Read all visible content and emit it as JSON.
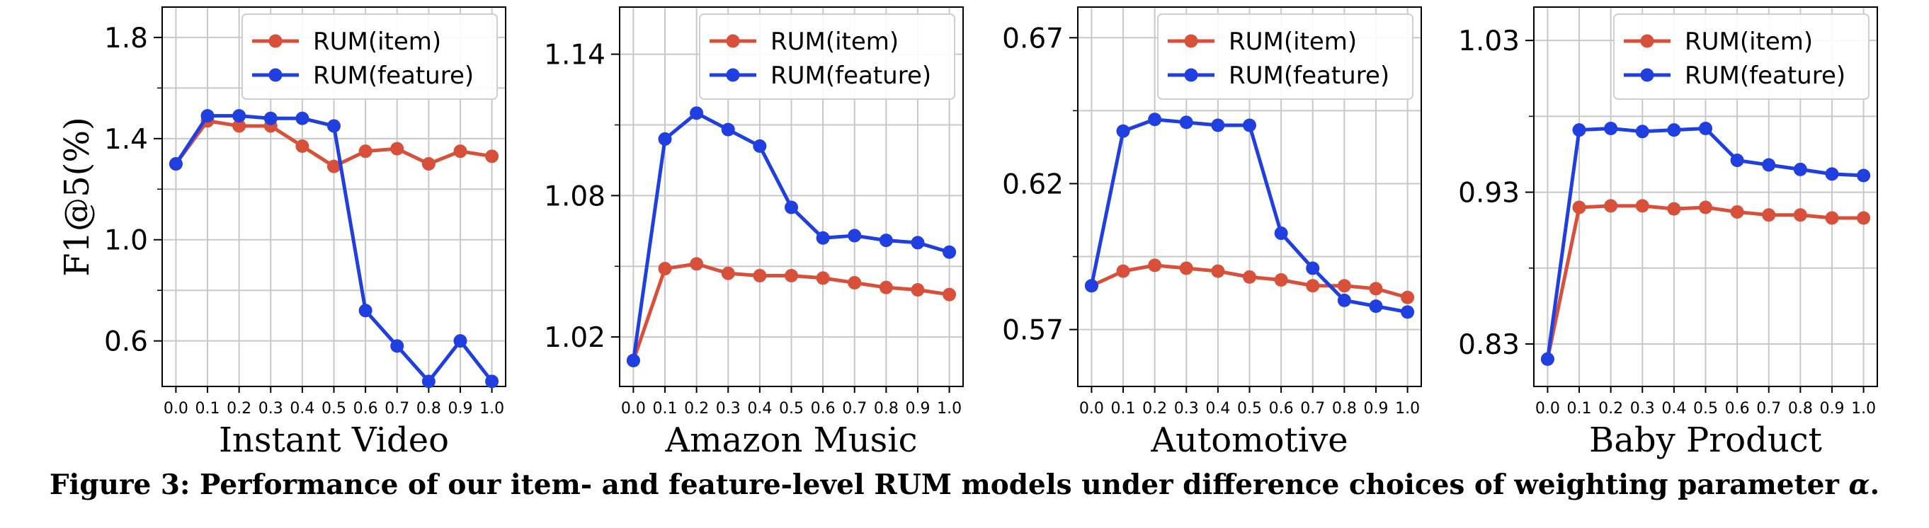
{
  "caption": {
    "label": "Figure 3:",
    "text": "Performance of our item- and feature-level RUM models under difference choices of weighting parameter",
    "symbol": "α",
    "end": "."
  },
  "colors": {
    "item": "#d9503a",
    "feature": "#1f3fe0"
  },
  "chart_data": [
    {
      "type": "line",
      "xlabel": "Instant Video",
      "ylabel": "F1@5(%)",
      "x": [
        0.0,
        0.1,
        0.2,
        0.3,
        0.4,
        0.5,
        0.6,
        0.7,
        0.8,
        0.9,
        1.0
      ],
      "xticks": [
        "0.0",
        "0.1",
        "0.2",
        "0.3",
        "0.4",
        "0.5",
        "0.6",
        "0.7",
        "0.8",
        "0.9",
        "1.0"
      ],
      "ylim": [
        0.42,
        1.92
      ],
      "yticks": [
        0.6,
        1.0,
        1.4,
        1.8
      ],
      "ytick_labels": [
        "0.6",
        "1.0",
        "1.4",
        "1.8"
      ],
      "grid": true,
      "legend": "top-right",
      "series": [
        {
          "name": "RUM(item)",
          "values": [
            1.3,
            1.47,
            1.45,
            1.45,
            1.37,
            1.29,
            1.35,
            1.36,
            1.3,
            1.35,
            1.33
          ]
        },
        {
          "name": "RUM(feature)",
          "values": [
            1.3,
            1.49,
            1.49,
            1.48,
            1.48,
            1.45,
            0.72,
            0.58,
            0.44,
            0.6,
            0.44
          ]
        }
      ]
    },
    {
      "type": "line",
      "xlabel": "Amazon Music",
      "ylabel": "",
      "x": [
        0.0,
        0.1,
        0.2,
        0.3,
        0.4,
        0.5,
        0.6,
        0.7,
        0.8,
        0.9,
        1.0
      ],
      "xticks": [
        "0.0",
        "0.1",
        "0.2",
        "0.3",
        "0.4",
        "0.5",
        "0.6",
        "0.7",
        "0.8",
        "0.9",
        "1.0"
      ],
      "ylim": [
        0.999,
        1.16
      ],
      "yticks": [
        1.02,
        1.08,
        1.14
      ],
      "ytick_labels": [
        "1.02",
        "1.08",
        "1.14"
      ],
      "grid": true,
      "legend": "top-right",
      "series": [
        {
          "name": "RUM(item)",
          "values": [
            1.01,
            1.049,
            1.051,
            1.047,
            1.046,
            1.046,
            1.045,
            1.043,
            1.041,
            1.04,
            1.038
          ]
        },
        {
          "name": "RUM(feature)",
          "values": [
            1.01,
            1.104,
            1.115,
            1.108,
            1.101,
            1.075,
            1.062,
            1.063,
            1.061,
            1.06,
            1.056
          ]
        }
      ]
    },
    {
      "type": "line",
      "xlabel": "Automotive",
      "ylabel": "",
      "x": [
        0.0,
        0.1,
        0.2,
        0.3,
        0.4,
        0.5,
        0.6,
        0.7,
        0.8,
        0.9,
        1.0
      ],
      "xticks": [
        "0.0",
        "0.1",
        "0.2",
        "0.3",
        "0.4",
        "0.5",
        "0.6",
        "0.7",
        "0.8",
        "0.9",
        "1.0"
      ],
      "ylim": [
        0.5505,
        0.6805
      ],
      "yticks": [
        0.57,
        0.62,
        0.67
      ],
      "ytick_labels": [
        "0.57",
        "0.62",
        "0.67"
      ],
      "grid": true,
      "legend": "top-right",
      "series": [
        {
          "name": "RUM(item)",
          "values": [
            0.585,
            0.59,
            0.592,
            0.591,
            0.59,
            0.588,
            0.587,
            0.585,
            0.585,
            0.584,
            0.581
          ]
        },
        {
          "name": "RUM(feature)",
          "values": [
            0.585,
            0.638,
            0.642,
            0.641,
            0.64,
            0.64,
            0.603,
            0.591,
            0.58,
            0.578,
            0.576
          ]
        }
      ]
    },
    {
      "type": "line",
      "xlabel": "Baby Product",
      "ylabel": "",
      "x": [
        0.0,
        0.1,
        0.2,
        0.3,
        0.4,
        0.5,
        0.6,
        0.7,
        0.8,
        0.9,
        1.0
      ],
      "xticks": [
        "0.0",
        "0.1",
        "0.2",
        "0.3",
        "0.4",
        "0.5",
        "0.6",
        "0.7",
        "0.8",
        "0.9",
        "1.0"
      ],
      "ylim": [
        0.802,
        1.052
      ],
      "yticks": [
        0.83,
        0.93,
        1.03
      ],
      "ytick_labels": [
        "0.83",
        "0.93",
        "1.03"
      ],
      "grid": true,
      "legend": "top-right",
      "series": [
        {
          "name": "RUM(item)",
          "values": [
            0.82,
            0.92,
            0.921,
            0.921,
            0.919,
            0.92,
            0.917,
            0.915,
            0.915,
            0.913,
            0.913
          ]
        },
        {
          "name": "RUM(feature)",
          "values": [
            0.82,
            0.971,
            0.972,
            0.97,
            0.971,
            0.972,
            0.951,
            0.948,
            0.945,
            0.942,
            0.941
          ]
        }
      ]
    }
  ]
}
